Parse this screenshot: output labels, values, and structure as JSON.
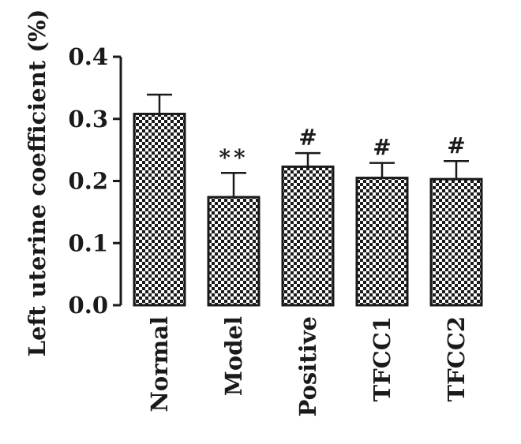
{
  "chart_data": {
    "type": "bar",
    "title": "",
    "xlabel": "",
    "ylabel": "Left uterine coefficient (%)",
    "ylim": [
      0,
      0.4
    ],
    "yticks": [
      "0.0",
      "0.1",
      "0.2",
      "0.3",
      "0.4"
    ],
    "grid": false,
    "categories": [
      "Normal",
      "Model",
      "Positive",
      "TFCC1",
      "TFCC2"
    ],
    "series": [
      {
        "values": [
          0.308,
          0.174,
          0.223,
          0.205,
          0.203
        ],
        "error": [
          0.031,
          0.039,
          0.022,
          0.024,
          0.029
        ]
      }
    ],
    "annotations": [
      "",
      "**",
      "#",
      "#",
      "#"
    ],
    "bar_fill": "checkerboard",
    "colors": {
      "ink": "#1a1a1a",
      "background": "#ffffff"
    }
  }
}
